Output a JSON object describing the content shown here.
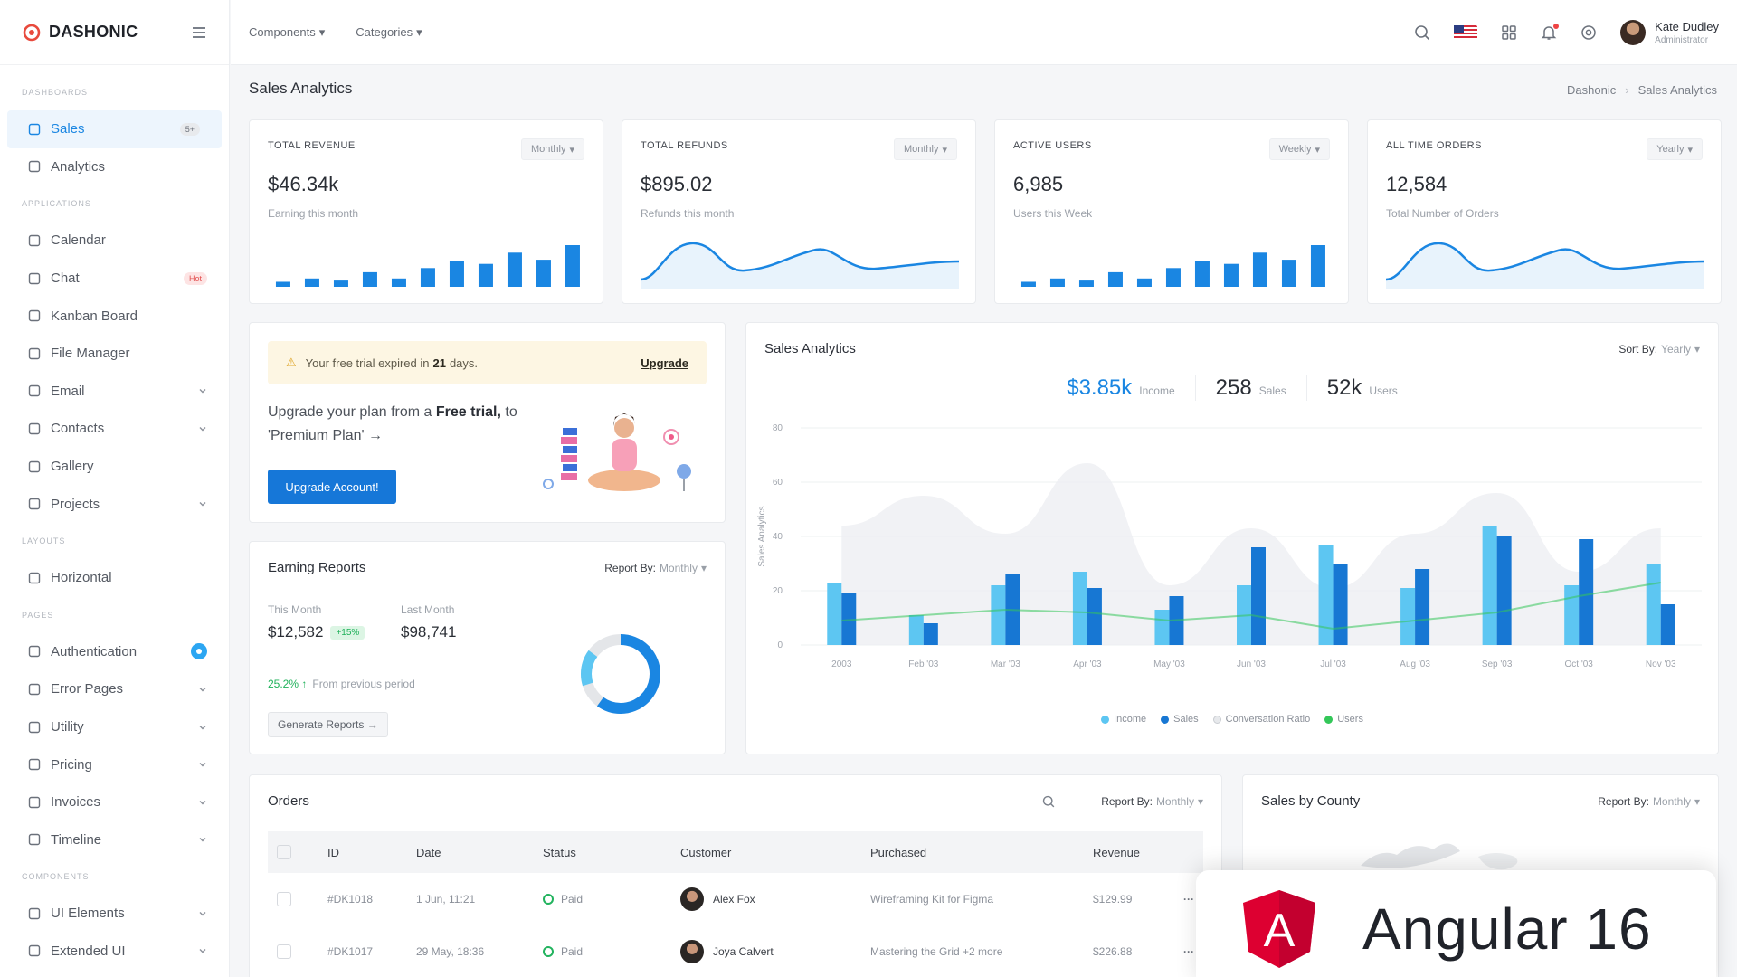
{
  "brand": {
    "name": "DASHONIC",
    "accent": "#1a86e2"
  },
  "topbar": {
    "menus": [
      "Components",
      "Categories"
    ],
    "user": {
      "name": "Kate Dudley",
      "role": "Administrator"
    }
  },
  "sidebar": {
    "sections": {
      "dashboards": "DASHBOARDS",
      "applications": "APPLICATIONS",
      "layouts": "LAYOUTS",
      "pages": "PAGES",
      "components": "COMPONENTS"
    },
    "items": [
      {
        "label": "Sales",
        "icon": "monitor-icon",
        "badge": "5+",
        "active": true
      },
      {
        "label": "Analytics",
        "icon": "pie-chart-icon"
      },
      {
        "label": "Calendar",
        "icon": "calendar-icon"
      },
      {
        "label": "Chat",
        "icon": "chat-icon",
        "badge": "Hot"
      },
      {
        "label": "Kanban Board",
        "icon": "kanban-icon"
      },
      {
        "label": "File Manager",
        "icon": "folder-icon"
      },
      {
        "label": "Email",
        "icon": "mail-icon",
        "expandable": true
      },
      {
        "label": "Contacts",
        "icon": "contacts-icon",
        "expandable": true
      },
      {
        "label": "Gallery",
        "icon": "image-icon"
      },
      {
        "label": "Projects",
        "icon": "briefcase-icon",
        "expandable": true
      },
      {
        "label": "Horizontal",
        "icon": "layout-icon"
      },
      {
        "label": "Authentication",
        "icon": "user-icon",
        "badge": "dot"
      },
      {
        "label": "Error Pages",
        "icon": "alert-circle-icon",
        "expandable": true
      },
      {
        "label": "Utility",
        "icon": "file-icon",
        "expandable": true
      },
      {
        "label": "Pricing",
        "icon": "tag-icon",
        "expandable": true
      },
      {
        "label": "Invoices",
        "icon": "invoice-icon",
        "expandable": true
      },
      {
        "label": "Timeline",
        "icon": "timeline-icon",
        "expandable": true
      },
      {
        "label": "UI Elements",
        "icon": "box-icon",
        "expandable": true
      },
      {
        "label": "Extended UI",
        "icon": "layers-icon",
        "expandable": true
      }
    ]
  },
  "page": {
    "title": "Sales Analytics",
    "breadcrumb": [
      "Dashonic",
      "Sales Analytics"
    ]
  },
  "stats": [
    {
      "label": "TOTAL REVENUE",
      "period": "Monthly",
      "value": "$46.34k",
      "sub": "Earning this month",
      "chart": "bar"
    },
    {
      "label": "TOTAL REFUNDS",
      "period": "Monthly",
      "value": "$895.02",
      "sub": "Refunds this month",
      "chart": "wave"
    },
    {
      "label": "ACTIVE USERS",
      "period": "Weekly",
      "value": "6,985",
      "sub": "Users this Week",
      "chart": "bar"
    },
    {
      "label": "ALL TIME ORDERS",
      "period": "Yearly",
      "value": "12,584",
      "sub": "Total Number of Orders",
      "chart": "wave"
    }
  ],
  "sparkline_bars": [
    0.12,
    0.2,
    0.15,
    0.35,
    0.2,
    0.45,
    0.62,
    0.55,
    0.82,
    0.65,
    1.0
  ],
  "trial": {
    "alert_prefix": "Your free trial expired in",
    "alert_days": "21",
    "alert_suffix": "days.",
    "upgrade_link": "Upgrade",
    "text_a": "Upgrade your plan from a",
    "text_b": "Free trial,",
    "text_c": "to 'Premium Plan' →",
    "button": "Upgrade Account!"
  },
  "earning": {
    "title": "Earning Reports",
    "report_by": "Report By:",
    "report_period": "Monthly",
    "this_month_label": "This Month",
    "this_month_value": "$12,582",
    "this_month_change": "+15%",
    "last_month_label": "Last Month",
    "last_month_value": "$98,741",
    "prev_pct": "25.2% ↑",
    "prev_text": "From previous period",
    "button": "Generate Reports →",
    "donut_fraction": 0.6
  },
  "analytics": {
    "title": "Sales Analytics",
    "sort_label": "Sort By:",
    "sort_value": "Yearly",
    "summary": [
      {
        "value": "$3.85k",
        "label": "Income"
      },
      {
        "value": "258",
        "label": "Sales"
      },
      {
        "value": "52k",
        "label": "Users"
      }
    ],
    "legend": [
      "Income",
      "Sales",
      "Conversation Ratio",
      "Users"
    ],
    "colors": {
      "income": "#5dc6f2",
      "sales": "#1777d3",
      "ratio": "#e7e9ec",
      "users": "#34c759"
    }
  },
  "chart_data": {
    "type": "bar",
    "ylabel": "Sales Analytics",
    "ylim": [
      0,
      80
    ],
    "yticks": [
      0,
      20,
      40,
      60,
      80
    ],
    "categories": [
      "2003",
      "Feb '03",
      "Mar '03",
      "Apr '03",
      "May '03",
      "Jun '03",
      "Jul '03",
      "Aug '03",
      "Sep '03",
      "Oct '03",
      "Nov '03"
    ],
    "series": [
      {
        "name": "Income",
        "type": "bar",
        "values": [
          23,
          11,
          22,
          27,
          13,
          22,
          37,
          21,
          44,
          22,
          30
        ]
      },
      {
        "name": "Sales",
        "type": "bar",
        "values": [
          19,
          8,
          26,
          21,
          18,
          36,
          30,
          28,
          40,
          39,
          15
        ]
      },
      {
        "name": "Conversation Ratio",
        "type": "area",
        "values": [
          44,
          55,
          41,
          67,
          22,
          43,
          21,
          41,
          56,
          27,
          43
        ]
      },
      {
        "name": "Users",
        "type": "line",
        "values": [
          9,
          11,
          13,
          12,
          9,
          11,
          6,
          9,
          12,
          18,
          23
        ]
      }
    ],
    "grid": true,
    "legend": "bottom-center"
  },
  "orders": {
    "title": "Orders",
    "report_by": "Report By:",
    "report_period": "Monthly",
    "columns": [
      "ID",
      "Date",
      "Status",
      "Customer",
      "Purchased",
      "Revenue"
    ],
    "rows": [
      {
        "id": "#DK1018",
        "date": "1 Jun, 11:21",
        "status": "Paid",
        "customer": "Alex Fox",
        "purchased": "Wireframing Kit for Figma",
        "revenue": "$129.99"
      },
      {
        "id": "#DK1017",
        "date": "29 May, 18:36",
        "status": "Paid",
        "customer": "Joya Calvert",
        "purchased": "Mastering the Grid +2 more",
        "revenue": "$226.88"
      }
    ]
  },
  "county": {
    "title": "Sales by County",
    "report_by": "Report By:",
    "report_period": "Monthly"
  },
  "overlay": {
    "text": "Angular 16",
    "logo_letter": "A"
  }
}
